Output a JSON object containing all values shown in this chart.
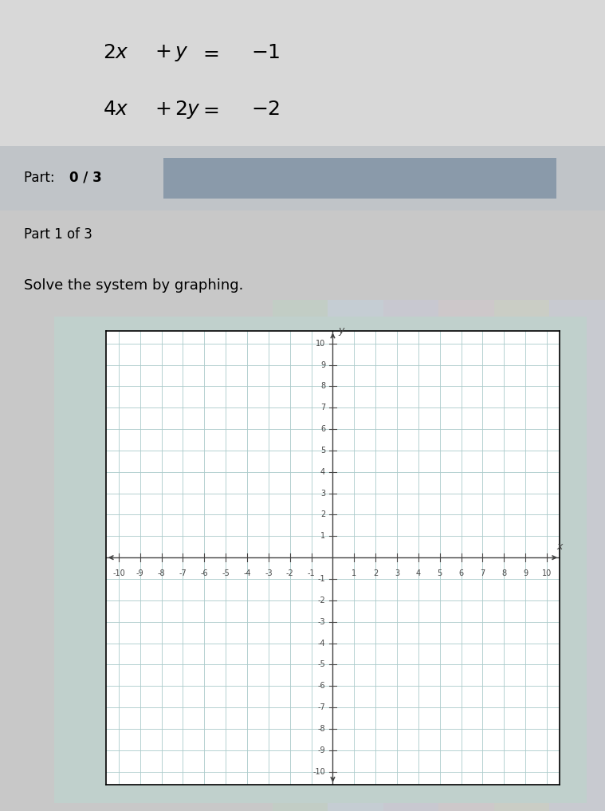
{
  "fig_bg": "#c8c8c8",
  "header_bg": "#d0d0d0",
  "panel_bg": "#c8c8c8",
  "part_bar_color": "#8a9aaa",
  "graph_white": "#ffffff",
  "grid_color": "#aacaca",
  "axis_color": "#444444",
  "text_color": "#111111",
  "eq1_text": "2x+y  =  −1",
  "eq2_text": "4x+2y  =  −2",
  "part_label": "Part: ",
  "part_bold": "0 / 3",
  "part1_label": "Part 1 of 3",
  "solve_label": "Solve the system by graphing.",
  "xlim": [
    -10,
    10
  ],
  "ylim": [
    -10,
    10
  ],
  "stripe_colors": [
    "#c8e8d0",
    "#d0e0f0",
    "#e8d0e8",
    "#f0e0d0"
  ],
  "stripe_alpha": 0.5
}
